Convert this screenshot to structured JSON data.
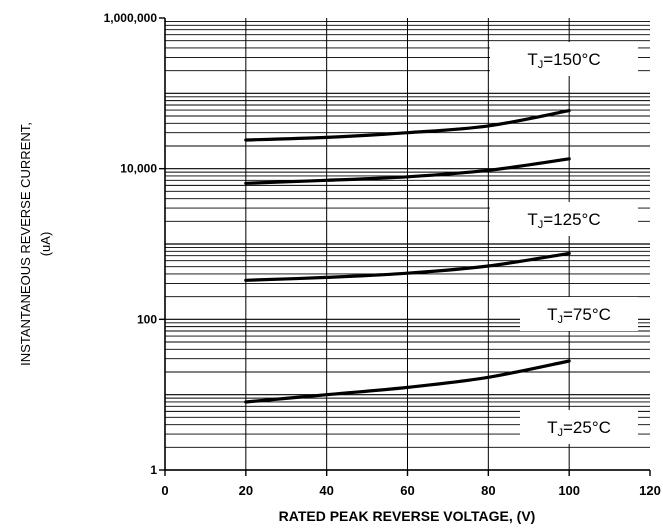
{
  "chart_data": {
    "type": "line",
    "title": "",
    "xlabel": "RATED PEAK REVERSE VOLTAGE, (V)",
    "ylabel": "INSTANTANEOUS REVERSE CURRENT,",
    "ylabel_unit": "(uA)",
    "xlim": [
      0,
      120
    ],
    "ylim": [
      1,
      1000000
    ],
    "yscale": "log",
    "grid": true,
    "x_ticks": [
      0,
      20,
      40,
      60,
      80,
      100,
      120
    ],
    "x_tick_labels": [
      "0",
      "20",
      "40",
      "60",
      "80",
      "100",
      "120"
    ],
    "y_ticks": [
      1,
      100,
      10000,
      1000000
    ],
    "y_tick_labels": [
      "1",
      "100",
      "10,000",
      "1,000,000"
    ],
    "series": [
      {
        "name_main": "T",
        "name_sub": "J",
        "name_rest": "=150°C",
        "x": [
          20,
          40,
          60,
          80,
          100
        ],
        "y": [
          24000,
          26000,
          30000,
          37000,
          59000
        ]
      },
      {
        "name_main": "T",
        "name_sub": "J",
        "name_rest": "=125°C",
        "x": [
          20,
          40,
          60,
          80,
          100
        ],
        "y": [
          6400,
          7000,
          7800,
          9500,
          13500
        ]
      },
      {
        "name_main": "T",
        "name_sub": "J",
        "name_rest": "=75°C",
        "x": [
          20,
          40,
          60,
          80,
          100
        ],
        "y": [
          330,
          360,
          410,
          510,
          750
        ]
      },
      {
        "name_main": "T",
        "name_sub": "J",
        "name_rest": "=25°C",
        "x": [
          20,
          40,
          60,
          80,
          100
        ],
        "y": [
          8,
          10,
          12.5,
          17,
          28
        ]
      }
    ]
  }
}
